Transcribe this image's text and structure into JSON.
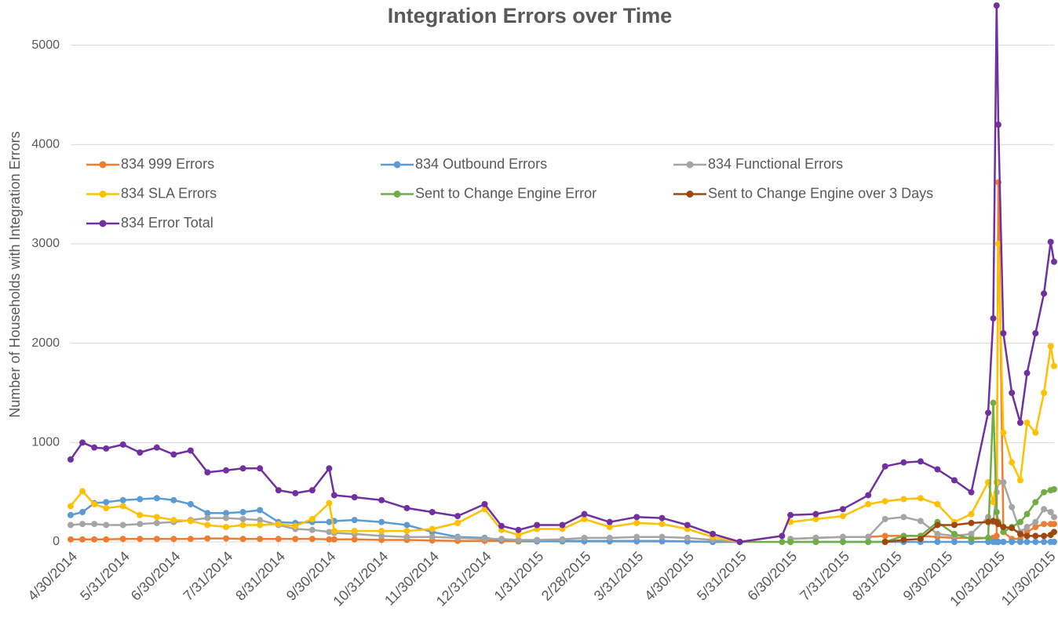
{
  "chart_data": {
    "type": "line",
    "title": "Integration Errors over Time",
    "y_label": "Number of Households with Integration Errors",
    "x": [
      "4/30/2014",
      "5/7/2014",
      "5/14/2014",
      "5/21/2014",
      "5/31/2014",
      "6/10/2014",
      "6/20/2014",
      "6/30/2014",
      "7/10/2014",
      "7/20/2014",
      "7/31/2014",
      "8/10/2014",
      "8/20/2014",
      "8/31/2014",
      "9/10/2014",
      "9/20/2014",
      "9/30/2014",
      "10/3/2014",
      "10/15/2014",
      "10/31/2014",
      "11/15/2014",
      "11/30/2014",
      "12/15/2014",
      "12/31/2014",
      "1/10/2015",
      "1/20/2015",
      "1/31/2015",
      "2/15/2015",
      "2/28/2015",
      "3/15/2015",
      "3/31/2015",
      "4/15/2015",
      "4/30/2015",
      "5/15/2015",
      "5/31/2015",
      "6/25/2015",
      "6/30/2015",
      "7/15/2015",
      "7/31/2015",
      "8/15/2015",
      "8/25/2015",
      "9/5/2015",
      "9/15/2015",
      "9/25/2015",
      "10/5/2015",
      "10/15/2015",
      "10/25/2015",
      "10/28/2015",
      "10/30/2015",
      "10/31/2015",
      "11/3/2015",
      "11/8/2015",
      "11/13/2015",
      "11/17/2015",
      "11/22/2015",
      "11/27/2015",
      "12/1/2015",
      "12/3/2015"
    ],
    "xlim": [
      "4/30/2014",
      "12/3/2015"
    ],
    "xticks": [
      "4/30/2014",
      "5/31/2014",
      "6/30/2014",
      "7/31/2014",
      "8/31/2014",
      "9/30/2014",
      "10/31/2014",
      "11/30/2014",
      "12/31/2014",
      "1/31/2015",
      "2/28/2015",
      "3/31/2015",
      "4/30/2015",
      "5/31/2015",
      "6/30/2015",
      "7/31/2015",
      "8/31/2015",
      "9/30/2015",
      "10/31/2015",
      "11/30/2015"
    ],
    "ylim": [
      0,
      5400
    ],
    "yticks": [
      0,
      1000,
      2000,
      3000,
      4000,
      5000
    ],
    "grid": true,
    "series": [
      {
        "name": "834 999 Errors",
        "color": "#ed7d31",
        "values": [
          25,
          25,
          25,
          25,
          30,
          30,
          30,
          30,
          30,
          35,
          35,
          30,
          30,
          30,
          30,
          30,
          25,
          25,
          25,
          20,
          20,
          15,
          10,
          10,
          10,
          5,
          5,
          5,
          5,
          5,
          5,
          5,
          5,
          0,
          0,
          null,
          30,
          40,
          50,
          50,
          60,
          60,
          60,
          50,
          40,
          40,
          40,
          40,
          60,
          3620,
          100,
          30,
          30,
          100,
          150,
          180,
          180,
          180
        ]
      },
      {
        "name": "834 Outbound Errors",
        "color": "#5b9bd5",
        "values": [
          270,
          300,
          390,
          400,
          420,
          430,
          440,
          420,
          380,
          290,
          290,
          300,
          320,
          200,
          190,
          200,
          200,
          210,
          220,
          200,
          170,
          100,
          50,
          40,
          20,
          15,
          10,
          10,
          10,
          10,
          10,
          10,
          5,
          0,
          0,
          null,
          0,
          0,
          0,
          0,
          0,
          0,
          0,
          0,
          0,
          0,
          0,
          0,
          0,
          0,
          0,
          0,
          0,
          0,
          0,
          0,
          0,
          0
        ]
      },
      {
        "name": "834 Functional Errors",
        "color": "#a5a5a5",
        "values": [
          170,
          180,
          180,
          170,
          170,
          180,
          190,
          200,
          220,
          240,
          240,
          230,
          220,
          170,
          130,
          120,
          100,
          90,
          80,
          60,
          50,
          50,
          40,
          30,
          30,
          20,
          20,
          25,
          40,
          40,
          50,
          50,
          40,
          20,
          0,
          null,
          30,
          40,
          50,
          50,
          230,
          250,
          210,
          80,
          60,
          80,
          250,
          200,
          500,
          600,
          600,
          350,
          100,
          150,
          200,
          330,
          300,
          250
        ]
      },
      {
        "name": "834 SLA Errors",
        "color": "#ffc000",
        "values": [
          360,
          510,
          380,
          340,
          360,
          270,
          250,
          220,
          210,
          170,
          150,
          170,
          170,
          180,
          160,
          230,
          390,
          110,
          110,
          110,
          110,
          130,
          190,
          330,
          120,
          70,
          130,
          130,
          230,
          150,
          190,
          180,
          130,
          50,
          0,
          null,
          200,
          230,
          260,
          380,
          410,
          430,
          440,
          380,
          200,
          280,
          600,
          400,
          600,
          3000,
          1100,
          800,
          620,
          1200,
          1100,
          1500,
          1970,
          1770
        ]
      },
      {
        "name": "Sent to Change Engine Error",
        "color": "#70ad47",
        "values": [
          null,
          null,
          null,
          null,
          null,
          null,
          null,
          null,
          null,
          null,
          null,
          null,
          null,
          null,
          null,
          null,
          null,
          null,
          null,
          null,
          null,
          null,
          null,
          null,
          null,
          null,
          null,
          null,
          null,
          null,
          null,
          null,
          null,
          null,
          0,
          0,
          0,
          0,
          0,
          0,
          0,
          60,
          60,
          200,
          80,
          30,
          40,
          1400,
          300,
          200,
          100,
          150,
          200,
          280,
          400,
          500,
          520,
          530
        ]
      },
      {
        "name": "Sent to Change Engine over 3 Days",
        "color": "#9e480e",
        "values": [
          null,
          null,
          null,
          null,
          null,
          null,
          null,
          null,
          null,
          null,
          null,
          null,
          null,
          null,
          null,
          null,
          null,
          null,
          null,
          null,
          null,
          null,
          null,
          null,
          null,
          null,
          null,
          null,
          null,
          null,
          null,
          null,
          null,
          null,
          null,
          null,
          null,
          null,
          null,
          null,
          0,
          20,
          30,
          170,
          170,
          190,
          200,
          210,
          200,
          180,
          150,
          140,
          80,
          60,
          60,
          60,
          70,
          100
        ]
      },
      {
        "name": "834 Error Total",
        "color": "#7030a0",
        "values": [
          830,
          1000,
          950,
          940,
          980,
          900,
          950,
          880,
          920,
          700,
          720,
          740,
          740,
          520,
          490,
          520,
          740,
          470,
          450,
          420,
          340,
          300,
          260,
          380,
          160,
          120,
          170,
          170,
          280,
          200,
          250,
          240,
          170,
          80,
          0,
          60,
          270,
          280,
          330,
          470,
          760,
          800,
          810,
          730,
          620,
          500,
          1300,
          2250,
          5400,
          4200,
          2100,
          1500,
          1200,
          1700,
          2100,
          2500,
          3020,
          2820
        ]
      }
    ]
  }
}
